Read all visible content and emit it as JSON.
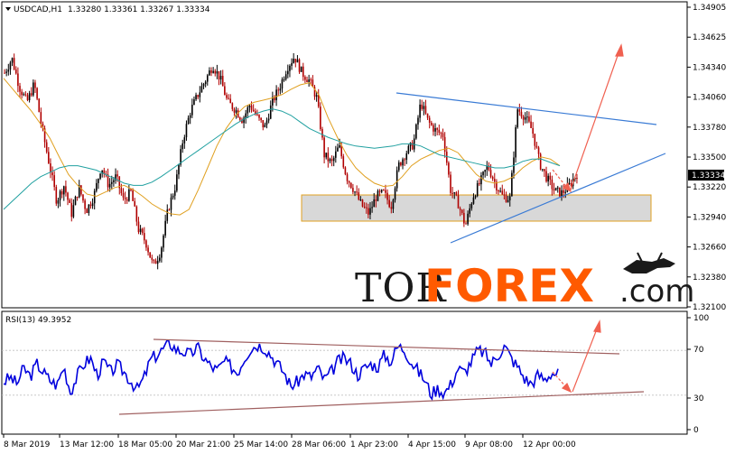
{
  "chart_data": [
    {
      "type": "candlestick",
      "symbol": "USDCAD,H1",
      "ohlc_header": "1.33280 1.33361 1.33267 1.33334",
      "current_price": 1.33334,
      "current_price_label": "1.33334",
      "ylim": [
        1.321,
        1.349
      ],
      "y_ticks": [
        "1.34905",
        "1.34625",
        "1.34340",
        "1.34060",
        "1.33780",
        "1.33500",
        "1.33220",
        "1.32940",
        "1.32660",
        "1.32380",
        "1.32100"
      ],
      "x_ticks": [
        "8 Mar 2019",
        "13 Mar 12:00",
        "18 Mar 05:00",
        "20 Mar 21:00",
        "25 Mar 14:00",
        "28 Mar 06:00",
        "1 Apr 23:00",
        "4 Apr 15:00",
        "9 Apr 08:00",
        "12 Apr 00:00"
      ],
      "close_path": [
        1.3425,
        1.3438,
        1.3412,
        1.3398,
        1.3415,
        1.3375,
        1.3342,
        1.3308,
        1.3322,
        1.3296,
        1.332,
        1.3299,
        1.3312,
        1.334,
        1.3322,
        1.333,
        1.3308,
        1.3316,
        1.3282,
        1.327,
        1.3248,
        1.3262,
        1.33,
        1.3322,
        1.3364,
        1.339,
        1.3405,
        1.3418,
        1.3432,
        1.342,
        1.3398,
        1.3392,
        1.3382,
        1.3396,
        1.3384,
        1.3375,
        1.3398,
        1.3412,
        1.343,
        1.344,
        1.3425,
        1.3418,
        1.3402,
        1.335,
        1.3342,
        1.3358,
        1.333,
        1.3318,
        1.3304,
        1.3296,
        1.3312,
        1.3315,
        1.3303,
        1.334,
        1.3352,
        1.336,
        1.3398,
        1.338,
        1.3372,
        1.3368,
        1.3318,
        1.3306,
        1.3285,
        1.3312,
        1.3325,
        1.334,
        1.3324,
        1.3312,
        1.331,
        1.3392,
        1.3385,
        1.3372,
        1.3342,
        1.3328,
        1.3317,
        1.3315,
        1.3322,
        1.3333
      ],
      "moving_averages": [
        {
          "color": "#e0a020",
          "values": [
            1.342,
            1.341,
            1.34,
            1.339,
            1.3378,
            1.3365,
            1.3348,
            1.3332,
            1.3322,
            1.3314,
            1.3312,
            1.3316,
            1.332,
            1.3322,
            1.3318,
            1.3312,
            1.3305,
            1.33,
            1.3296,
            1.3295,
            1.33,
            1.3318,
            1.3338,
            1.3358,
            1.3374,
            1.3386,
            1.3394,
            1.3398,
            1.34,
            1.3402,
            1.3405,
            1.341,
            1.3414,
            1.3416,
            1.3405,
            1.3384,
            1.3366,
            1.335,
            1.3338,
            1.333,
            1.3324,
            1.3321,
            1.3322,
            1.333,
            1.334,
            1.3346,
            1.335,
            1.3354,
            1.3356,
            1.3352,
            1.3342,
            1.3332,
            1.3326,
            1.3324,
            1.3326,
            1.333,
            1.3338,
            1.3344,
            1.3348,
            1.3346,
            1.334
          ]
        },
        {
          "color": "#20a0a0",
          "values": [
            1.33,
            1.3308,
            1.3316,
            1.3324,
            1.333,
            1.3334,
            1.3338,
            1.334,
            1.334,
            1.3338,
            1.3336,
            1.3332,
            1.3328,
            1.3324,
            1.3322,
            1.3322,
            1.3325,
            1.333,
            1.3336,
            1.3342,
            1.3348,
            1.3354,
            1.336,
            1.3366,
            1.3372,
            1.3378,
            1.3383,
            1.3387,
            1.339,
            1.3392,
            1.339,
            1.3386,
            1.338,
            1.3374,
            1.337,
            1.3366,
            1.3363,
            1.336,
            1.3358,
            1.3357,
            1.3356,
            1.3357,
            1.3358,
            1.336,
            1.336,
            1.3358,
            1.3354,
            1.335,
            1.3348,
            1.3346,
            1.3344,
            1.3342,
            1.334,
            1.3338,
            1.3338,
            1.334,
            1.3344,
            1.3346,
            1.3346,
            1.3343,
            1.334
          ]
        }
      ]
    },
    {
      "type": "line",
      "indicator": "RSI",
      "label": "RSI(13) 49.3952",
      "ylim": [
        0,
        100
      ],
      "y_ticks": [
        "100",
        "70",
        "30",
        "0"
      ],
      "levels": [
        70,
        30
      ],
      "color": "#0000dd",
      "values": [
        42,
        46,
        40,
        54,
        47,
        58,
        50,
        43,
        39,
        56,
        33,
        47,
        58,
        63,
        48,
        60,
        50,
        57,
        51,
        43,
        35,
        45,
        62,
        66,
        72,
        76,
        70,
        69,
        66,
        73,
        63,
        56,
        52,
        60,
        56,
        50,
        63,
        72,
        75,
        73,
        66,
        58,
        50,
        38,
        42,
        49,
        46,
        54,
        44,
        50,
        60,
        63,
        58,
        48,
        54,
        58,
        55,
        66,
        60,
        74,
        71,
        60,
        52,
        44,
        31,
        36,
        32,
        40,
        54,
        50,
        60,
        70,
        68,
        58,
        66,
        74,
        63,
        55,
        45,
        40,
        48,
        44,
        50,
        49
      ]
    }
  ],
  "watermark": {
    "tor": "TOR",
    "forex": "FOREX",
    "com": ".com"
  },
  "colors": {
    "bull": "#000000",
    "bear": "#b00000",
    "trend": "#3a7bd5",
    "signal": "#f06050",
    "rsi_channel": "#a06060"
  }
}
